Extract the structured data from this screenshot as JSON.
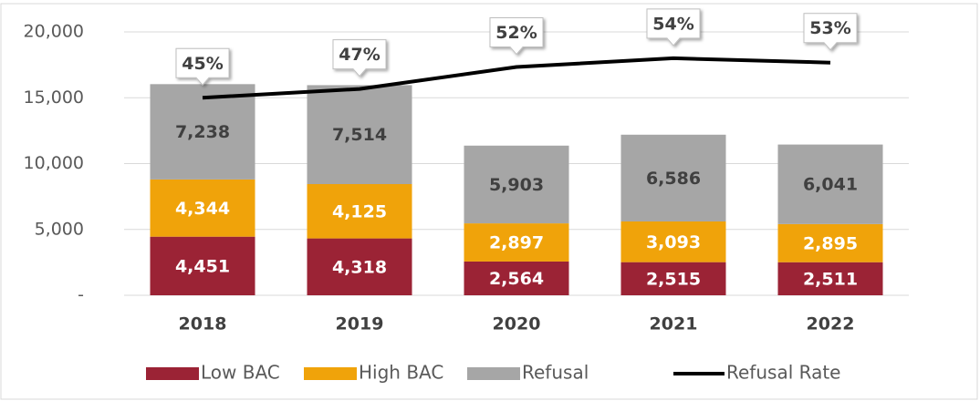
{
  "chart_data": {
    "type": "bar",
    "categories": [
      "2018",
      "2019",
      "2020",
      "2021",
      "2022"
    ],
    "series": [
      {
        "name": "Low BAC",
        "color": "#9b2335",
        "values": [
          4451,
          4318,
          2564,
          2515,
          2511
        ],
        "value_labels": [
          "4,451",
          "4,318",
          "2,564",
          "2,515",
          "2,511"
        ]
      },
      {
        "name": "High BAC",
        "color": "#f0a30a",
        "values": [
          4344,
          4125,
          2897,
          3093,
          2895
        ],
        "value_labels": [
          "4,344",
          "4,125",
          "2,897",
          "3,093",
          "2,895"
        ]
      },
      {
        "name": "Refusal",
        "color": "#a6a6a6",
        "values": [
          7238,
          7514,
          5903,
          6586,
          6041
        ],
        "value_labels": [
          "7,238",
          "7,514",
          "5,903",
          "6,586",
          "6,041"
        ]
      },
      {
        "name": "Refusal Rate",
        "type": "line",
        "axis": "y2",
        "color": "#000000",
        "values": [
          45,
          47,
          52,
          54,
          53
        ],
        "value_labels": [
          "45%",
          "47%",
          "52%",
          "54%",
          "53%"
        ]
      }
    ],
    "ylim": [
      0,
      20000
    ],
    "yticks": [
      {
        "value": 0,
        "label": "-"
      },
      {
        "value": 5000,
        "label": "5,000"
      },
      {
        "value": 10000,
        "label": "10,000"
      },
      {
        "value": 15000,
        "label": "15,000"
      },
      {
        "value": 20000,
        "label": "20,000"
      }
    ],
    "y2lim": [
      0,
      60
    ],
    "grid": true,
    "stacked": true,
    "legend": "bottom"
  }
}
